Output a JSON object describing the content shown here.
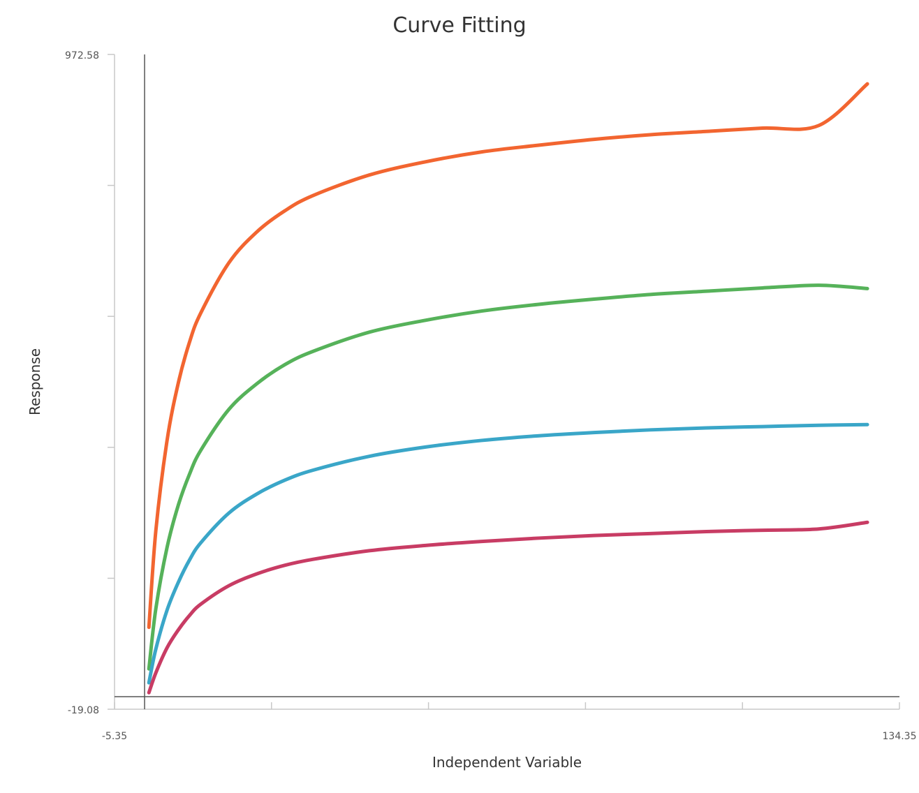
{
  "chart_data": {
    "type": "line",
    "title": "Curve Fitting",
    "xlabel": "Independent Variable",
    "ylabel": "Response",
    "xlim": [
      -5.35,
      134.35
    ],
    "ylim": [
      -19.08,
      972.58
    ],
    "x_tick_labels": [
      "-5.35",
      "134.35"
    ],
    "y_tick_labels": [
      "972.58",
      "-19.08"
    ],
    "x_ticks": [
      -5.35,
      22.59,
      50.53,
      78.47,
      106.41,
      134.35
    ],
    "y_ticks": [
      -19.08,
      179.25,
      377.58,
      575.92,
      774.25,
      972.58
    ],
    "zero_lines": true,
    "grid": false,
    "legend": "none",
    "series": [
      {
        "color": "#f26530",
        "x": [
          0.77,
          2,
          4,
          6,
          8,
          10,
          15,
          20,
          25,
          30,
          40,
          50,
          60,
          70,
          80,
          90,
          100,
          110,
          120,
          128.64
        ],
        "y": [
          105,
          251,
          388,
          475,
          537,
          581,
          657,
          704,
          736,
          759,
          790,
          810,
          825,
          835,
          844,
          851,
          856,
          861,
          865,
          928
        ]
      },
      {
        "color": "#56b25a",
        "x": [
          0.77,
          2,
          4,
          6,
          8,
          10,
          15,
          20,
          25,
          30,
          40,
          50,
          60,
          70,
          80,
          90,
          100,
          110,
          120,
          128.64
        ],
        "y": [
          42,
          133,
          226,
          290,
          337,
          373,
          435,
          474,
          503,
          523,
          552,
          570,
          584,
          594,
          602,
          609,
          614,
          619,
          623,
          618
        ]
      },
      {
        "color": "#3aa6c8",
        "x": [
          0.77,
          2,
          4,
          6,
          8,
          10,
          15,
          20,
          25,
          30,
          40,
          50,
          60,
          70,
          80,
          90,
          100,
          110,
          120,
          128.64
        ],
        "y": [
          21,
          72,
          131,
          173,
          207,
          233,
          278,
          307,
          328,
          343,
          364,
          378,
          388,
          395,
          400,
          404,
          407,
          409,
          411,
          412
        ]
      },
      {
        "color": "#c83c64",
        "x": [
          0.77,
          2,
          4,
          6,
          8,
          10,
          15,
          20,
          25,
          30,
          40,
          50,
          60,
          70,
          80,
          90,
          100,
          110,
          120,
          128.64
        ],
        "y": [
          6,
          36,
          74,
          101,
          123,
          140,
          168,
          186,
          199,
          208,
          221,
          229,
          235,
          240,
          244,
          247,
          250,
          252,
          254,
          264
        ]
      }
    ]
  }
}
